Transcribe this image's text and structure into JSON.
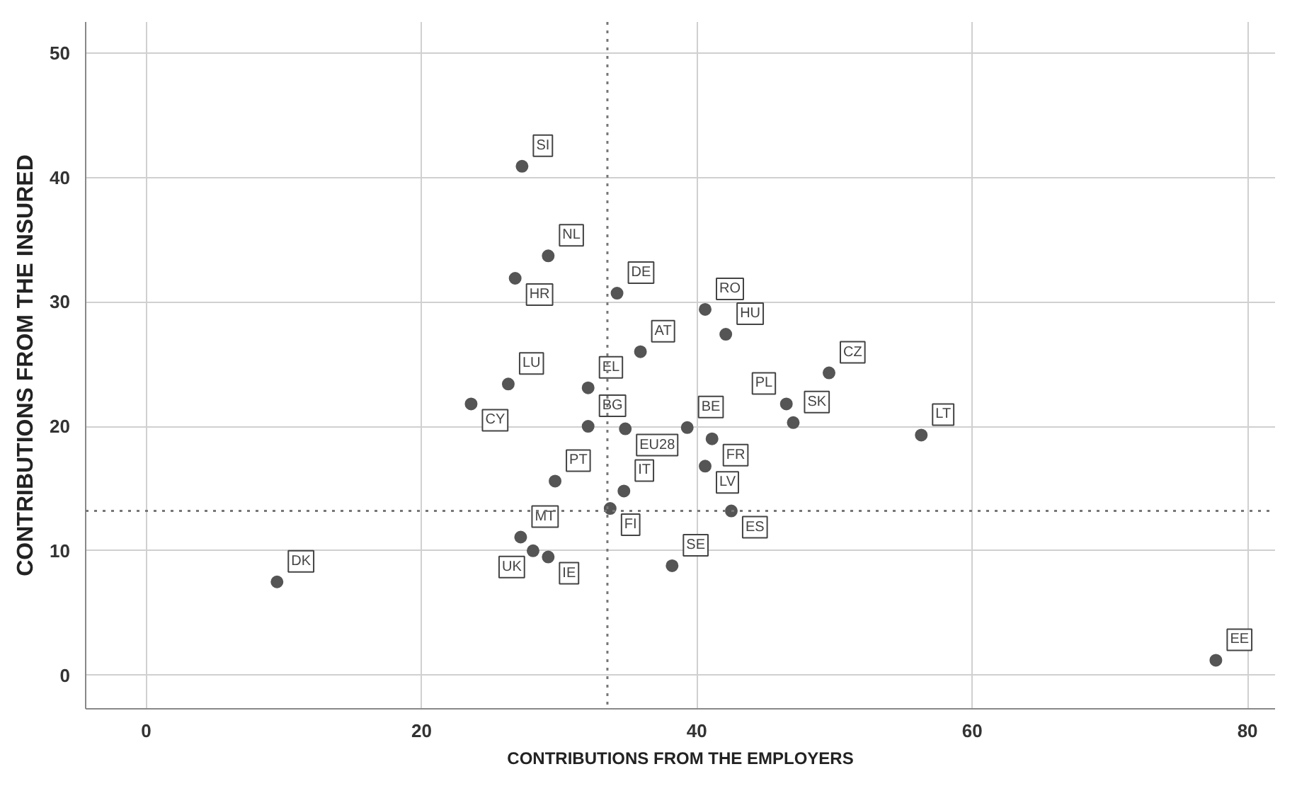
{
  "chart_data": {
    "type": "scatter",
    "xlabel": "CONTRIBUTIONS FROM THE EMPLOYERS",
    "ylabel": "CONTRIBUTIONS FROM THE INSURED",
    "x": [
      27.3,
      29.2,
      26.8,
      34.2,
      40.6,
      35.9,
      42.1,
      32.1,
      26.3,
      49.6,
      46.5,
      47.0,
      23.6,
      32.1,
      34.8,
      39.3,
      41.1,
      40.6,
      29.7,
      34.7,
      33.7,
      42.5,
      27.2,
      28.1,
      29.2,
      38.2,
      9.5,
      56.3,
      77.7
    ],
    "series": [
      {
        "color": "#555555",
        "values": [
          40.9,
          33.7,
          31.9,
          30.7,
          29.4,
          26.0,
          27.4,
          23.1,
          23.4,
          24.3,
          21.8,
          20.3,
          21.8,
          20.0,
          19.8,
          19.9,
          19.0,
          16.8,
          15.6,
          14.8,
          13.4,
          13.2,
          11.1,
          10.0,
          9.5,
          8.8,
          7.5,
          19.3,
          1.2
        ]
      }
    ],
    "annotations": [
      {
        "text": "SI",
        "x": 27.3,
        "y": 40.9
      },
      {
        "text": "NL",
        "x": 29.2,
        "y": 33.7
      },
      {
        "text": "HR",
        "x": 26.8,
        "y": 31.9
      },
      {
        "text": "DE",
        "x": 34.2,
        "y": 30.7
      },
      {
        "text": "RO",
        "x": 40.6,
        "y": 29.4
      },
      {
        "text": "AT",
        "x": 35.9,
        "y": 26.0
      },
      {
        "text": "HU",
        "x": 42.1,
        "y": 27.4
      },
      {
        "text": "EL",
        "x": 32.1,
        "y": 23.1
      },
      {
        "text": "LU",
        "x": 26.3,
        "y": 23.4
      },
      {
        "text": "CZ",
        "x": 49.6,
        "y": 24.3
      },
      {
        "text": "PL",
        "x": 46.5,
        "y": 21.8
      },
      {
        "text": "SK",
        "x": 47.0,
        "y": 20.3
      },
      {
        "text": "CY",
        "x": 23.6,
        "y": 21.8
      },
      {
        "text": "BG",
        "x": 32.1,
        "y": 20.0
      },
      {
        "text": "EU28",
        "x": 34.8,
        "y": 19.8
      },
      {
        "text": "BE",
        "x": 39.3,
        "y": 19.9
      },
      {
        "text": "FR",
        "x": 41.1,
        "y": 19.0
      },
      {
        "text": "LV",
        "x": 40.6,
        "y": 16.8
      },
      {
        "text": "PT",
        "x": 29.7,
        "y": 15.6
      },
      {
        "text": "IT",
        "x": 34.7,
        "y": 14.8
      },
      {
        "text": "FI",
        "x": 33.7,
        "y": 13.4
      },
      {
        "text": "ES",
        "x": 42.5,
        "y": 13.2
      },
      {
        "text": "MT",
        "x": 27.2,
        "y": 11.1
      },
      {
        "text": "UK",
        "x": 28.1,
        "y": 10.0
      },
      {
        "text": "IE",
        "x": 29.2,
        "y": 9.5
      },
      {
        "text": "SE",
        "x": 38.2,
        "y": 8.8
      },
      {
        "text": "DK",
        "x": 9.5,
        "y": 7.5
      },
      {
        "text": "LT",
        "x": 56.3,
        "y": 19.3
      },
      {
        "text": "EE",
        "x": 77.7,
        "y": 1.2
      }
    ],
    "xlim": [
      -4.4,
      82
    ],
    "ylim": [
      -2.7,
      52.5
    ],
    "xticks": [
      0,
      20,
      40,
      60,
      80
    ],
    "yticks": [
      0,
      10,
      20,
      30,
      40,
      50
    ],
    "ref_lines": [
      {
        "axis": "x",
        "value": 33.5,
        "color": "#777777",
        "line_style": "dotted"
      },
      {
        "axis": "y",
        "value": 13.2,
        "color": "#777777",
        "line_style": "dotted"
      }
    ],
    "grid": true,
    "marker": "circle"
  }
}
